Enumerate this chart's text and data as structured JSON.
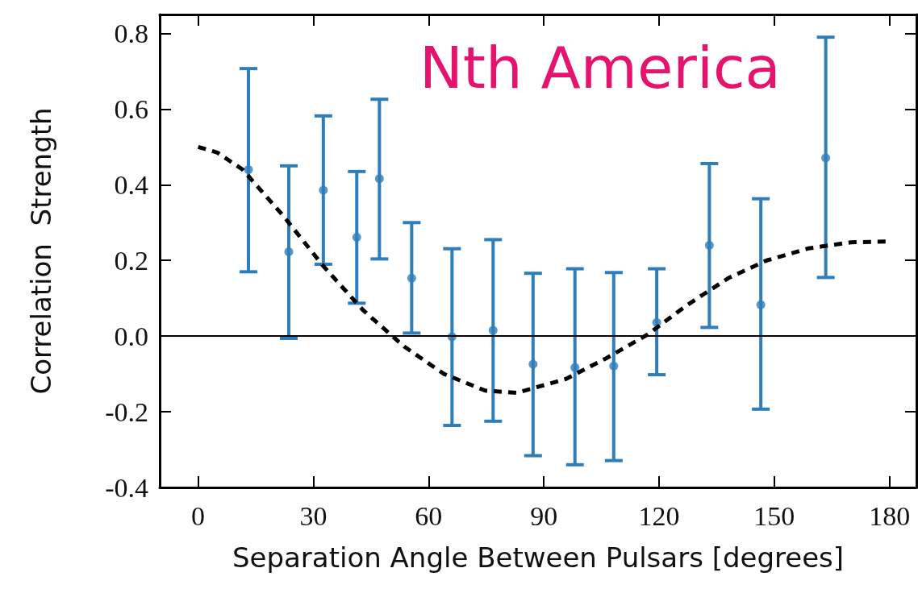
{
  "chart_data": {
    "type": "scatter",
    "xlabel": "Separation Angle Between Pulsars [degrees]",
    "ylabel": "Correlation  Strength",
    "annotations": [
      "Nth America"
    ],
    "xlim": [
      -10,
      187
    ],
    "xticks": [
      0,
      30,
      60,
      90,
      120,
      150,
      180
    ],
    "ylim": [
      -0.4,
      0.85
    ],
    "yticks": [
      -0.4,
      -0.2,
      {
        "value": 0,
        "label": "0.0"
      },
      0.2,
      0.4,
      0.6,
      0.8
    ],
    "grid": false,
    "marker": "circle",
    "ref_lines": [
      {
        "axis": "y",
        "value": 0,
        "color": "#000000"
      }
    ],
    "series": [
      {
        "color": "#2e7ebc",
        "x": [
          13.1,
          23.6,
          32.6,
          41.3,
          47.2,
          55.6,
          66.1,
          76.8,
          87.2,
          98.1,
          108.2,
          119.4,
          133.1,
          146.5,
          163.4
        ],
        "values": [
          0.44,
          0.223,
          0.386,
          0.261,
          0.416,
          0.153,
          -0.002,
          0.015,
          -0.074,
          -0.083,
          -0.079,
          0.036,
          0.24,
          0.083,
          0.471
        ],
        "errors": [
          [
            0.17,
            0.707
          ],
          [
            -0.006,
            0.45
          ],
          [
            0.19,
            0.582
          ],
          [
            0.087,
            0.435
          ],
          [
            0.204,
            0.626
          ],
          [
            0.008,
            0.3
          ],
          [
            -0.236,
            0.231
          ],
          [
            -0.225,
            0.255
          ],
          [
            -0.316,
            0.166
          ],
          [
            -0.34,
            0.178
          ],
          [
            -0.329,
            0.168
          ],
          [
            -0.102,
            0.178
          ],
          [
            0.023,
            0.456
          ],
          [
            -0.193,
            0.363
          ],
          [
            0.155,
            0.79
          ]
        ]
      },
      {
        "type": "line",
        "color": "#000000",
        "line_style": "dashed",
        "marker": "none",
        "x": [
          0,
          5,
          11.6,
          22,
          32.6,
          43,
          53.7,
          64,
          74.7,
          83,
          95.8,
          106,
          117,
          127,
          138,
          148,
          159,
          170,
          180
        ],
        "values": [
          0.5,
          0.485,
          0.44,
          0.32,
          0.185,
          0.068,
          -0.028,
          -0.1,
          -0.144,
          -0.15,
          -0.113,
          -0.06,
          0.004,
          0.08,
          0.153,
          0.2,
          0.232,
          0.248,
          0.25
        ]
      }
    ]
  }
}
